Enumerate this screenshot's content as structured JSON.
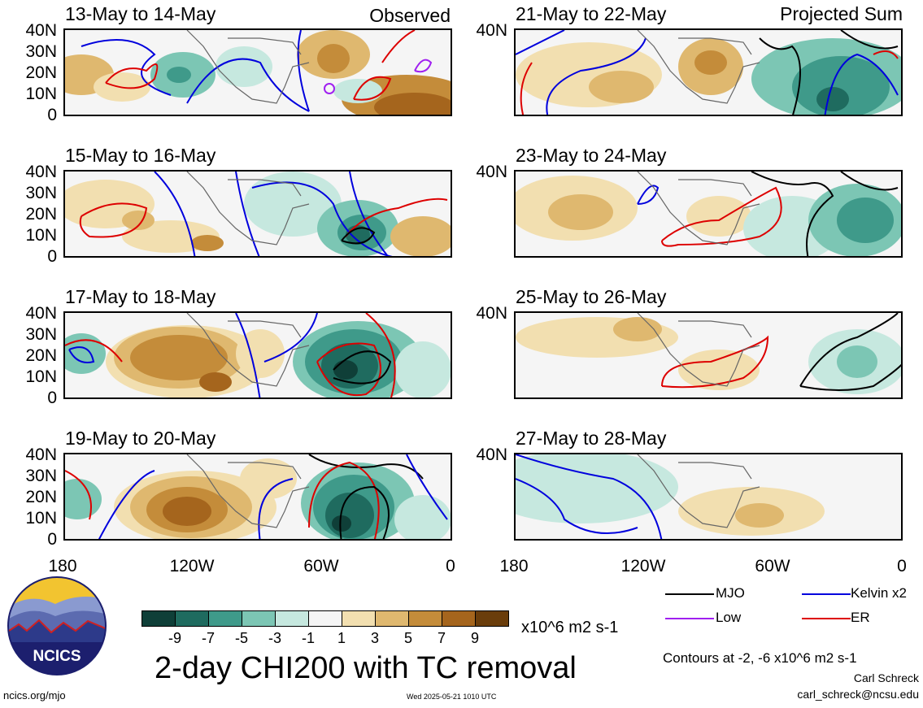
{
  "panel_titles": {
    "p1": "13-May to 14-May",
    "p2": "15-May to 16-May",
    "p3": "17-May to 18-May",
    "p4": "19-May to 20-May",
    "p5": "21-May to 22-May",
    "p6": "23-May to 24-May",
    "p7": "25-May to 26-May",
    "p8": "27-May to 28-May"
  },
  "column_tags": {
    "left": "Observed",
    "right": "Projected Sum"
  },
  "lat_labels": [
    "40N",
    "30N",
    "20N",
    "10N",
    "0"
  ],
  "lon_labels": [
    "180",
    "120W",
    "60W",
    "0"
  ],
  "colorbar": {
    "labels": [
      "-9",
      "-7",
      "-5",
      "-3",
      "-1",
      "1",
      "3",
      "5",
      "7",
      "9"
    ],
    "colors": [
      "#0f3f38",
      "#1f6b5f",
      "#3f9a8a",
      "#7cc6b4",
      "#c6e8df",
      "#f5f5f5",
      "#f2dfb0",
      "#dfb86f",
      "#c48c3a",
      "#a5651d",
      "#6a3d0b"
    ],
    "units": "x10^6 m2 s-1"
  },
  "chart_title": "2-day CHI200 with TC removal",
  "legend": {
    "items": [
      {
        "label": "MJO",
        "color": "#000000"
      },
      {
        "label": "Kelvin x2",
        "color": "#0000dd"
      },
      {
        "label": "Low",
        "color": "#a020f0"
      },
      {
        "label": "ER",
        "color": "#dd0000"
      }
    ],
    "contours_note": "Contours at -2, -6 x10^6 m2 s-1"
  },
  "author": {
    "name": "Carl Schreck",
    "email": "carl_schreck@ncsu.edu"
  },
  "logo": {
    "text": "NCICS"
  },
  "footer": {
    "site": "ncics.org/mjo",
    "timestamp": "Wed 2025-05-21 1010 UTC"
  }
}
